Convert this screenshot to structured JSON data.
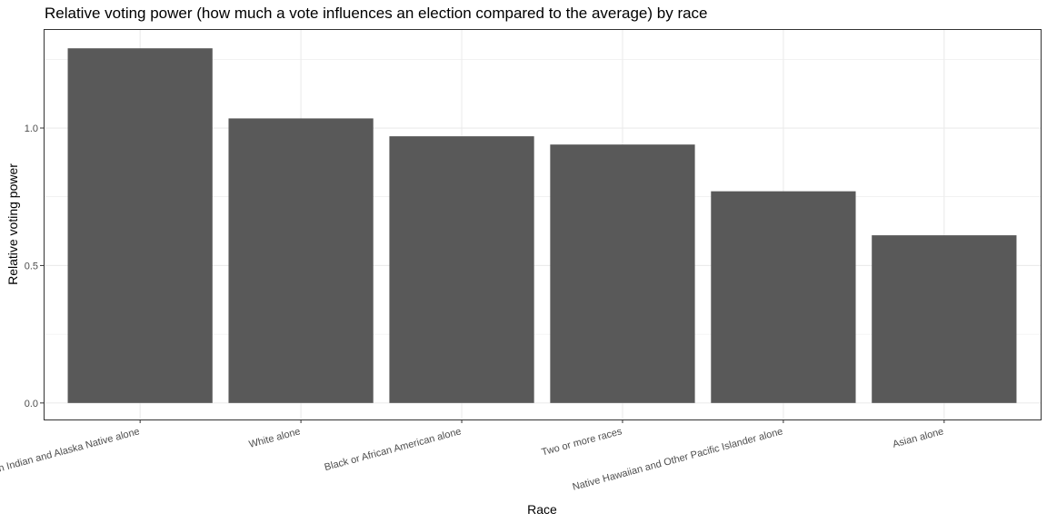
{
  "chart_data": {
    "type": "bar",
    "title": "Relative voting power (how much a vote influences an election compared to the average) by race",
    "xlabel": "Race",
    "ylabel": "Relative voting power",
    "categories": [
      "American Indian and Alaska Native alone",
      "White alone",
      "Black or African American alone",
      "Two or more races",
      "Native Hawaiian and Other Pacific Islander alone",
      "Asian alone"
    ],
    "values": [
      1.29,
      1.035,
      0.97,
      0.94,
      0.77,
      0.61
    ],
    "ylim": [
      -0.06,
      1.36
    ],
    "yticks": [
      0.0,
      0.5,
      1.0
    ],
    "ytick_labels": [
      "0.0",
      "0.5",
      "1.0"
    ],
    "grid": true,
    "legend": "none",
    "colors": {
      "bar": "#595959",
      "grid": "#ebebeb",
      "panel_border": "#333333",
      "axis_text": "#4d4d4d",
      "label_text": "#000000"
    }
  }
}
